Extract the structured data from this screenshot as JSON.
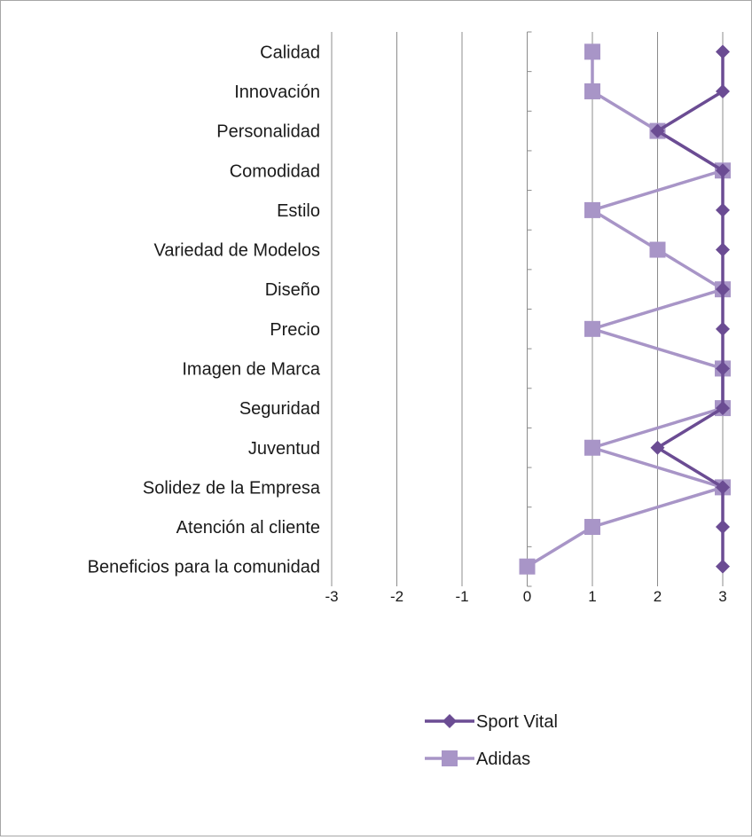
{
  "chart_data": {
    "type": "line",
    "orientation": "horizontal",
    "categories": [
      "Calidad",
      "Innovación",
      "Personalidad",
      "Comodidad",
      "Estilo",
      "Variedad de Modelos",
      "Diseño",
      "Precio",
      "Imagen de Marca",
      "Seguridad",
      "Juventud",
      "Solidez de la Empresa",
      "Atención al cliente ",
      "Beneficios para la comunidad"
    ],
    "series": [
      {
        "name": "Sport Vital",
        "values": [
          3,
          3,
          2,
          3,
          3,
          3,
          3,
          3,
          3,
          3,
          2,
          3,
          3,
          3
        ],
        "color": "#6b4c93",
        "marker": "diamond"
      },
      {
        "name": "Adidas",
        "values": [
          1,
          1,
          2,
          3,
          1,
          2,
          3,
          1,
          3,
          3,
          1,
          3,
          1,
          0
        ],
        "color": "#a895c7",
        "marker": "square"
      }
    ],
    "xlim": [
      -3,
      3
    ],
    "xticks": [
      "-3",
      "-2",
      "-1",
      "0",
      "1",
      "2",
      "3"
    ],
    "grid": "vertical",
    "legend": "bottom-center",
    "title": "",
    "xlabel": "",
    "ylabel": ""
  }
}
